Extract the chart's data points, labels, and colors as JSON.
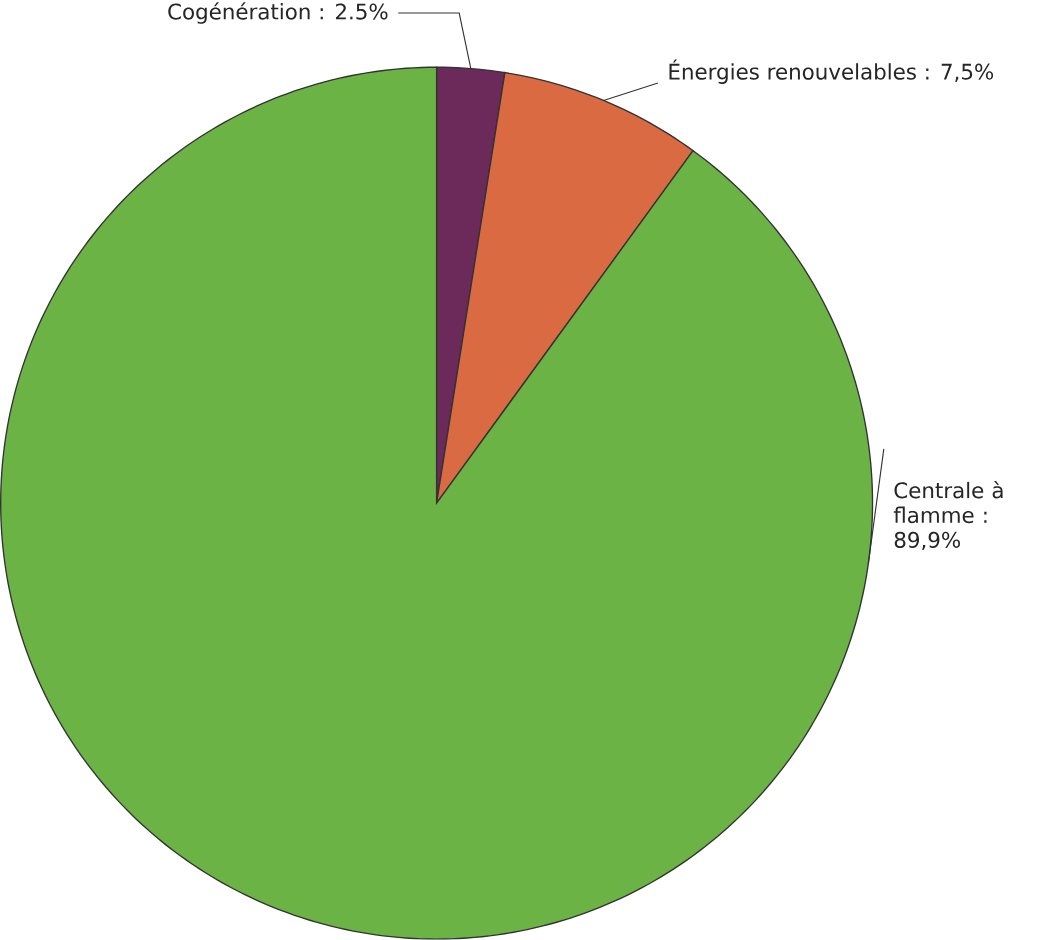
{
  "chart_data": {
    "type": "pie",
    "categories": [
      "Cogénération",
      "Énergies renouvelables",
      "Centrale à flamme"
    ],
    "values": [
      2.5,
      7.5,
      89.9
    ],
    "value_labels": [
      ": 2.5%",
      ": 7,5%",
      ": 89,9%"
    ],
    "colors": [
      "#6b2a5a",
      "#d96a42",
      "#6ab344"
    ]
  }
}
